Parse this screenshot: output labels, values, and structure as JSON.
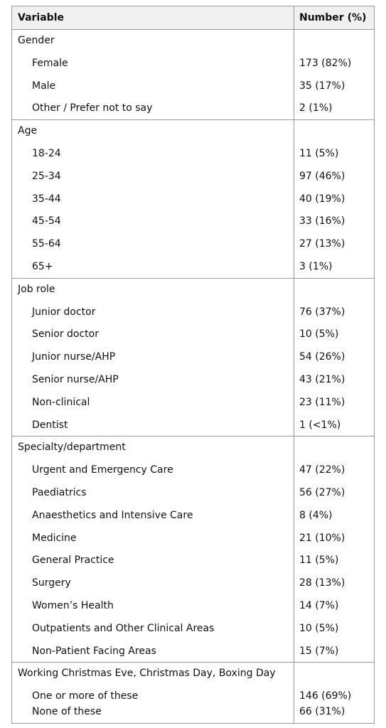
{
  "header": {
    "variable": "Variable",
    "number": "Number (%)"
  },
  "sections": [
    {
      "title": "Gender",
      "rows": [
        [
          "Female",
          "173 (82%)"
        ],
        [
          "Male",
          "35 (17%)"
        ],
        [
          "Other / Prefer not to say",
          "2 (1%)"
        ]
      ]
    },
    {
      "title": "Age",
      "rows": [
        [
          "18-24",
          "11 (5%)"
        ],
        [
          "25-34",
          "97 (46%)"
        ],
        [
          "35-44",
          "40 (19%)"
        ],
        [
          "45-54",
          "33 (16%)"
        ],
        [
          "55-64",
          "27 (13%)"
        ],
        [
          "65+",
          "3 (1%)"
        ]
      ]
    },
    {
      "title": "Job role",
      "rows": [
        [
          "Junior doctor",
          "76 (37%)"
        ],
        [
          "Senior doctor",
          "10 (5%)"
        ],
        [
          "Junior nurse/AHP",
          "54 (26%)"
        ],
        [
          "Senior nurse/AHP",
          "43 (21%)"
        ],
        [
          "Non-clinical",
          "23 (11%)"
        ],
        [
          "Dentist",
          "1 (<1%)"
        ]
      ]
    },
    {
      "title": "Specialty/department",
      "rows": [
        [
          "Urgent and Emergency Care",
          "47 (22%)"
        ],
        [
          "Paediatrics",
          "56 (27%)"
        ],
        [
          "Anaesthetics and Intensive Care",
          "8 (4%)"
        ],
        [
          "Medicine",
          "21 (10%)"
        ],
        [
          "General Practice",
          "11 (5%)"
        ],
        [
          "Surgery",
          "28 (13%)"
        ],
        [
          "Women’s Health",
          "14 (7%)"
        ],
        [
          "Outpatients and Other Clinical Areas",
          "10 (5%)"
        ],
        [
          "Non-Patient Facing Areas",
          "15 (7%)"
        ]
      ]
    },
    {
      "title": "Working Christmas Eve, Christmas Day, Boxing Day",
      "rows": [
        [
          "One or more of these",
          "146 (69%)"
        ],
        [
          "None of these",
          "66 (31%)"
        ]
      ]
    }
  ]
}
